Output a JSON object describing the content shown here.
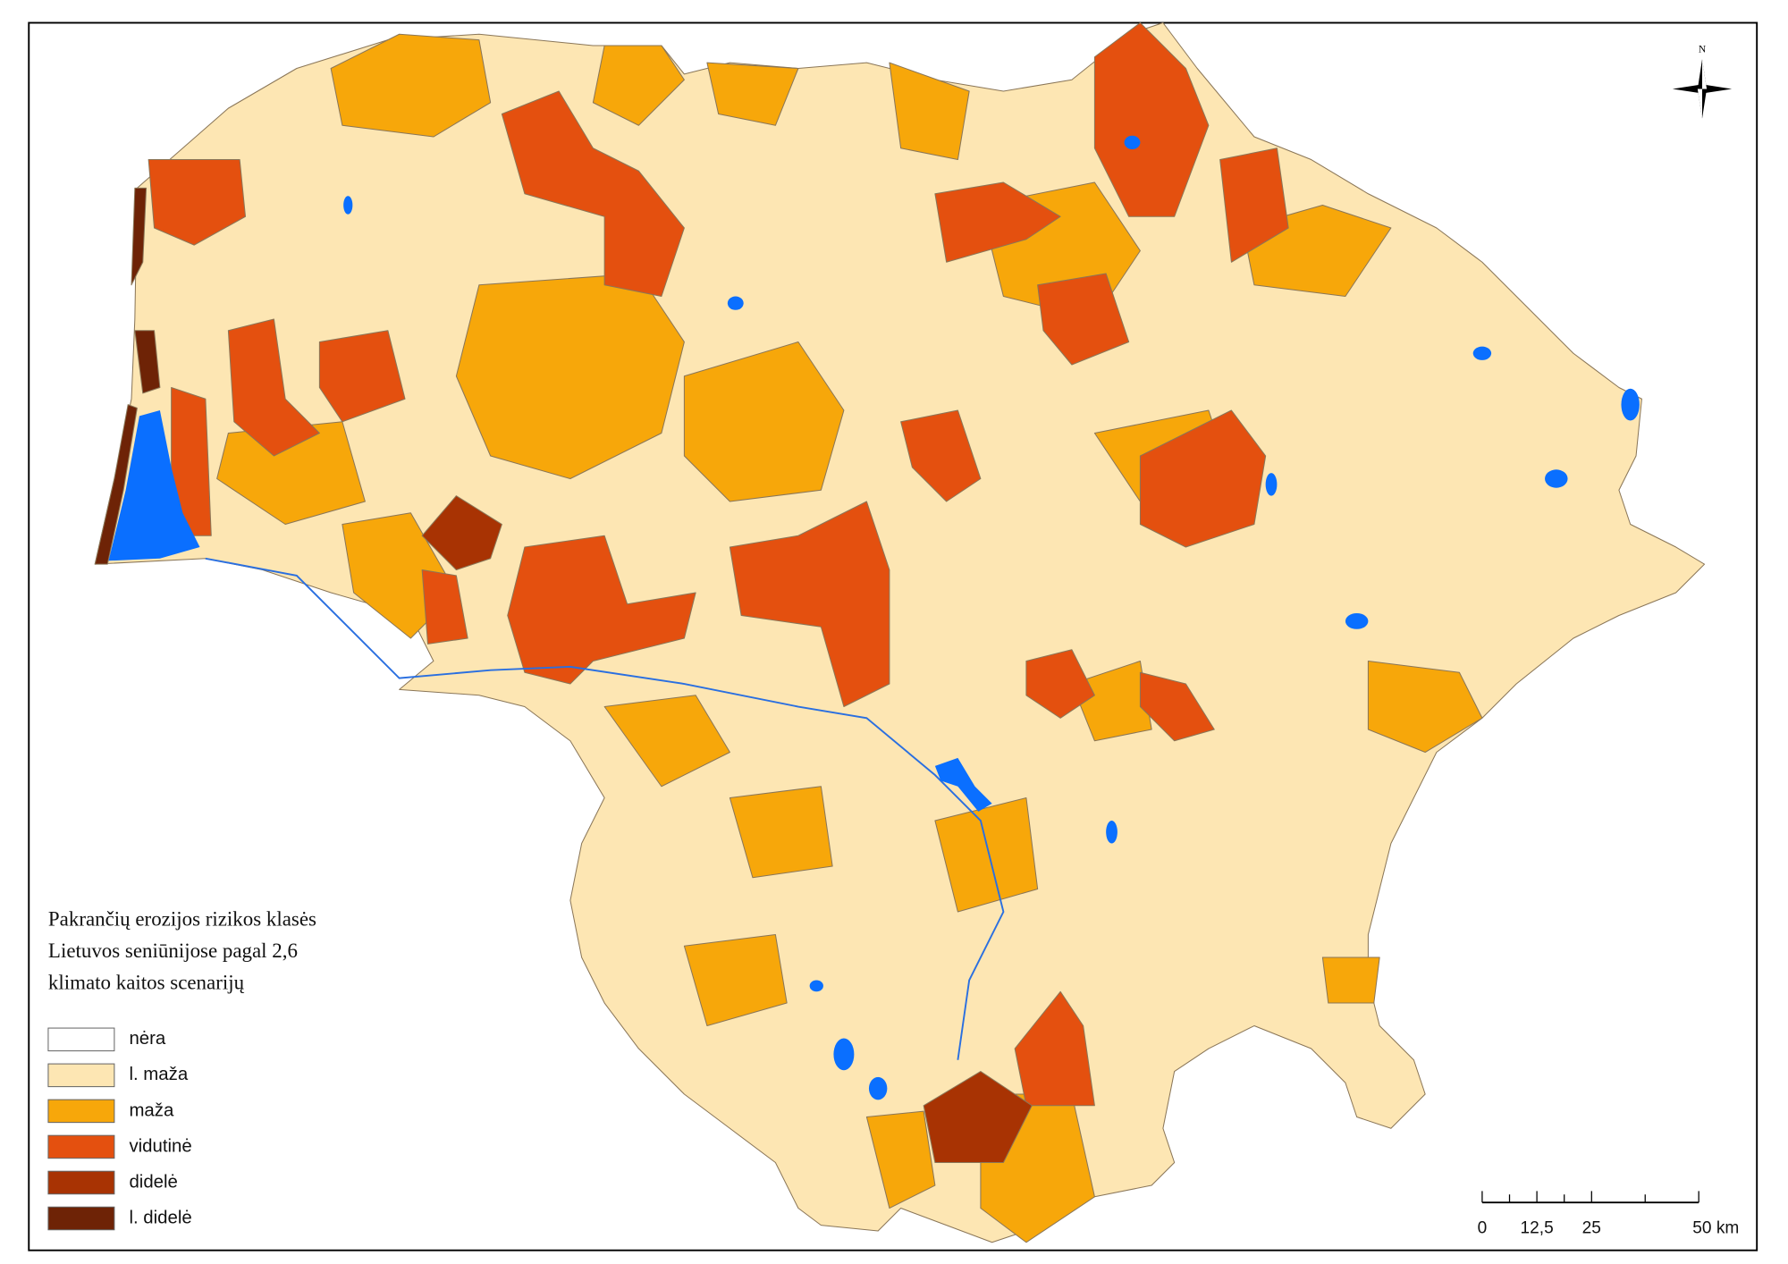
{
  "title_lines": [
    "Pakrančių erozijos rizikos klasės",
    "Lietuvos seniūnijose pagal 2,6",
    "klimato kaitos scenarijų"
  ],
  "legend": [
    {
      "label": "nėra",
      "color": "#ffffff"
    },
    {
      "label": "l. maža",
      "color": "#fde6b3"
    },
    {
      "label": "maža",
      "color": "#f7a70a"
    },
    {
      "label": "vidutinė",
      "color": "#e4500f"
    },
    {
      "label": "didelė",
      "color": "#a83303"
    },
    {
      "label": "l. didelė",
      "color": "#6e2306"
    }
  ],
  "scale_bar": [
    "0",
    "12,5",
    "25",
    "50 km"
  ],
  "north_arrow": "N"
}
